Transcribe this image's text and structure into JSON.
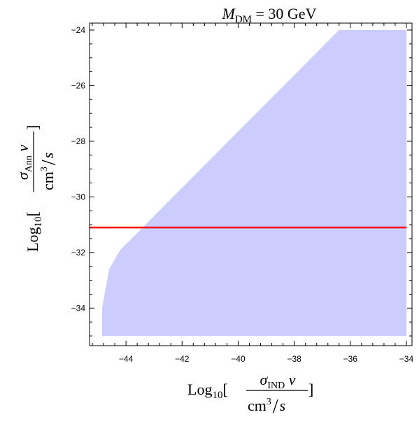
{
  "chart_data": {
    "type": "area",
    "title": {
      "main": "M",
      "sub": "DM",
      "rest": " = 30 GeV"
    },
    "xlabel": {
      "prefix": "Log",
      "prefix_sub": "10",
      "open": "[",
      "close": "]",
      "num_sigma": "σ",
      "num_sub": "IND",
      "num_v": " v",
      "den_cm": "cm",
      "den_exp": "3",
      "den_slash": "/",
      "den_s": "s"
    },
    "ylabel": {
      "prefix": "Log",
      "prefix_sub": "10",
      "open": "[",
      "close": "]",
      "num_sigma": "σ",
      "num_sub": "Ann",
      "num_v": " v",
      "den_cm": "cm",
      "den_exp": "3",
      "den_slash": "/",
      "den_s": "s"
    },
    "xlim": [
      -45.3,
      -33.8
    ],
    "ylim": [
      -35.35,
      -23.75
    ],
    "xticks": [
      -44,
      -42,
      -40,
      -38,
      -36,
      -34
    ],
    "yticks": [
      -24,
      -26,
      -28,
      -30,
      -32,
      -34
    ],
    "xticklabels": [
      "−44",
      "−42",
      "−40",
      "−38",
      "−36",
      "−34"
    ],
    "yticklabels": [
      "−24",
      "−26",
      "−28",
      "−30",
      "−32",
      "−34"
    ],
    "region": {
      "name": "",
      "color": "#ccccff",
      "points": [
        [
          -44.85,
          -35.0
        ],
        [
          -44.85,
          -34.0
        ],
        [
          -44.6,
          -32.6
        ],
        [
          -44.2,
          -31.9
        ],
        [
          -43.9,
          -31.6
        ],
        [
          -36.4,
          -24.0
        ],
        [
          -34.0,
          -24.0
        ],
        [
          -34.0,
          -35.0
        ]
      ]
    },
    "line": {
      "name": "",
      "color": "#ff0000",
      "y": -31.1,
      "x_range": [
        -45.3,
        -34.0
      ]
    },
    "grid": false,
    "legend": "none"
  }
}
